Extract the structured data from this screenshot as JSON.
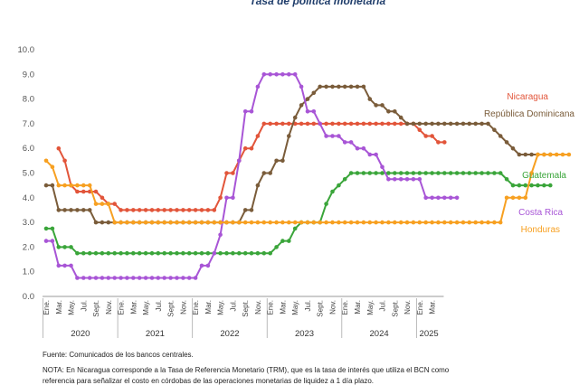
{
  "chart_data": {
    "type": "line",
    "title": "Tasa de política monetaria",
    "ylim": [
      0,
      10
    ],
    "yticks": [
      "0.0",
      "1.0",
      "2.0",
      "3.0",
      "4.0",
      "5.0",
      "6.0",
      "7.0",
      "8.0",
      "9.0",
      "10.0"
    ],
    "grid": false,
    "legend": "inline labels at right end",
    "x_months": [
      "Ene.",
      "Mar.",
      "May.",
      "Jul.",
      "Sept.",
      "Nov.",
      "Ene.",
      "Mar.",
      "May.",
      "Jul.",
      "Sept.",
      "Nov.",
      "Ene.",
      "Mar.",
      "May.",
      "Jul.",
      "Sept.",
      "Nov.",
      "Ene.",
      "Mar.",
      "May.",
      "Jul.",
      "Sept.",
      "Nov.",
      "Ene.",
      "Mar.",
      "May.",
      "Jul.",
      "Sept.",
      "Nov.",
      "Ene.",
      "Mar."
    ],
    "x_years": [
      "2020",
      "2021",
      "2022",
      "2023",
      "2024",
      "2025"
    ],
    "series": [
      {
        "name": "Nicaragua",
        "color": "#e2553a",
        "start": "2020-03",
        "values": [
          6.0,
          5.5,
          4.5,
          4.25,
          4.25,
          4.25,
          4.25,
          4.0,
          3.75,
          3.75,
          3.5,
          3.5,
          3.5,
          3.5,
          3.5,
          3.5,
          3.5,
          3.5,
          3.5,
          3.5,
          3.5,
          3.5,
          3.5,
          3.5,
          3.5,
          3.5,
          4.0,
          5.0,
          5.0,
          5.5,
          6.0,
          6.0,
          6.5,
          7.0,
          7.0,
          7.0,
          7.0,
          7.0,
          7.0,
          7.0,
          7.0,
          7.0,
          7.0,
          7.0,
          7.0,
          7.0,
          7.0,
          7.0,
          7.0,
          7.0,
          7.0,
          7.0,
          7.0,
          7.0,
          7.0,
          7.0,
          7.0,
          7.0,
          6.75,
          6.5,
          6.5,
          6.25,
          6.25
        ]
      },
      {
        "name": "República Dominicana",
        "color": "#7a5c3a",
        "start": "2020-01",
        "values": [
          4.5,
          4.5,
          3.5,
          3.5,
          3.5,
          3.5,
          3.5,
          3.5,
          3.0,
          3.0,
          3.0,
          3.0,
          3.0,
          3.0,
          3.0,
          3.0,
          3.0,
          3.0,
          3.0,
          3.0,
          3.0,
          3.0,
          3.0,
          3.0,
          3.0,
          3.0,
          3.0,
          3.0,
          3.0,
          3.0,
          3.0,
          3.0,
          3.5,
          3.5,
          4.5,
          5.0,
          5.0,
          5.5,
          5.5,
          6.5,
          7.25,
          7.75,
          8.0,
          8.25,
          8.5,
          8.5,
          8.5,
          8.5,
          8.5,
          8.5,
          8.5,
          8.5,
          8.0,
          7.75,
          7.75,
          7.5,
          7.5,
          7.25,
          7.0,
          7.0,
          7.0,
          7.0,
          7.0,
          7.0,
          7.0,
          7.0,
          7.0,
          7.0,
          7.0,
          7.0,
          7.0,
          7.0,
          6.75,
          6.5,
          6.25,
          6.0,
          5.75,
          5.75,
          5.75,
          5.75,
          5.75,
          5.75
        ]
      },
      {
        "name": "Guatemala",
        "color": "#3aa53a",
        "start": "2020-01",
        "values": [
          2.75,
          2.75,
          2.0,
          2.0,
          2.0,
          1.75,
          1.75,
          1.75,
          1.75,
          1.75,
          1.75,
          1.75,
          1.75,
          1.75,
          1.75,
          1.75,
          1.75,
          1.75,
          1.75,
          1.75,
          1.75,
          1.75,
          1.75,
          1.75,
          1.75,
          1.75,
          1.75,
          1.75,
          1.75,
          1.75,
          1.75,
          1.75,
          1.75,
          1.75,
          1.75,
          1.75,
          1.75,
          2.0,
          2.25,
          2.25,
          2.75,
          3.0,
          3.0,
          3.0,
          3.0,
          3.75,
          4.25,
          4.5,
          4.75,
          5.0,
          5.0,
          5.0,
          5.0,
          5.0,
          5.0,
          5.0,
          5.0,
          5.0,
          5.0,
          5.0,
          5.0,
          5.0,
          5.0,
          5.0,
          5.0,
          5.0,
          5.0,
          5.0,
          5.0,
          5.0,
          5.0,
          5.0,
          5.0,
          5.0,
          4.75,
          4.5,
          4.5,
          4.5,
          4.5,
          4.5,
          4.5,
          4.5
        ]
      },
      {
        "name": "Costa Rica",
        "color": "#a855d6",
        "start": "2020-01",
        "values": [
          2.25,
          2.25,
          1.25,
          1.25,
          1.25,
          0.75,
          0.75,
          0.75,
          0.75,
          0.75,
          0.75,
          0.75,
          0.75,
          0.75,
          0.75,
          0.75,
          0.75,
          0.75,
          0.75,
          0.75,
          0.75,
          0.75,
          0.75,
          0.75,
          0.75,
          1.25,
          1.25,
          1.75,
          2.5,
          4.0,
          4.0,
          5.5,
          7.5,
          7.5,
          8.5,
          9.0,
          9.0,
          9.0,
          9.0,
          9.0,
          9.0,
          8.5,
          7.5,
          7.5,
          7.0,
          6.5,
          6.5,
          6.5,
          6.25,
          6.25,
          6.0,
          6.0,
          5.75,
          5.75,
          5.25,
          4.75,
          4.75,
          4.75,
          4.75,
          4.75,
          4.75,
          4.0,
          4.0,
          4.0,
          4.0,
          4.0,
          4.0
        ]
      },
      {
        "name": "Honduras",
        "color": "#f7a021",
        "start": "2020-01",
        "values": [
          5.5,
          5.25,
          4.5,
          4.5,
          4.5,
          4.5,
          4.5,
          4.5,
          3.75,
          3.75,
          3.75,
          3.0,
          3.0,
          3.0,
          3.0,
          3.0,
          3.0,
          3.0,
          3.0,
          3.0,
          3.0,
          3.0,
          3.0,
          3.0,
          3.0,
          3.0,
          3.0,
          3.0,
          3.0,
          3.0,
          3.0,
          3.0,
          3.0,
          3.0,
          3.0,
          3.0,
          3.0,
          3.0,
          3.0,
          3.0,
          3.0,
          3.0,
          3.0,
          3.0,
          3.0,
          3.0,
          3.0,
          3.0,
          3.0,
          3.0,
          3.0,
          3.0,
          3.0,
          3.0,
          3.0,
          3.0,
          3.0,
          3.0,
          3.0,
          3.0,
          3.0,
          3.0,
          3.0,
          3.0,
          3.0,
          3.0,
          3.0,
          3.0,
          3.0,
          3.0,
          3.0,
          3.0,
          3.0,
          3.0,
          4.0,
          4.0,
          4.0,
          4.0,
          5.0,
          5.75,
          5.75,
          5.75,
          5.75,
          5.75,
          5.75
        ]
      }
    ]
  },
  "labels": {
    "nicaragua": "Nicaragua",
    "rep_dom": "República Dominicana",
    "guatemala": "Guatemala",
    "costa_rica": "Costa Rica",
    "honduras": "Honduras"
  },
  "footer": {
    "source": "Fuente: Comunicados de los bancos centrales.",
    "note1": "NOTA: En Nicaragua corresponde a la Tasa de Referencia Monetario (TRM), que es la tasa de interés que utiliza el BCN como",
    "note2": "referencia para señalizar el costo en córdobas de las operaciones monetarias de liquidez a 1 día plazo."
  }
}
